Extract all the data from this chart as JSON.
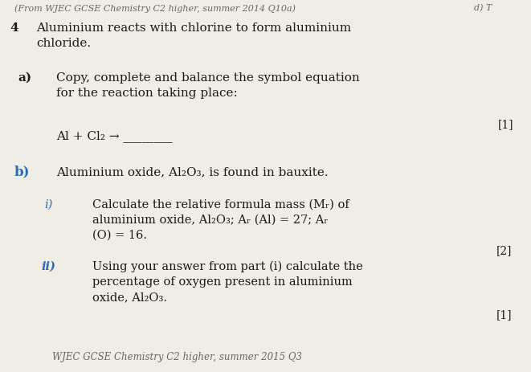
{
  "bg_color": "#f0ede6",
  "title_italic": "(From WJEC GCSE Chemistry C2 higher, summer 2014 Q10a)",
  "title_right": "d) T",
  "q_number": "4",
  "q_intro": "Aluminium reacts with chlorine to form aluminium\nchloride.",
  "a_label": "a)",
  "a_text": "Copy, complete and balance the symbol equation\nfor the reaction taking place:",
  "a_mark": "[1]",
  "equation": "Al + Cl₂ → ________",
  "b_label": "b)",
  "b_text": "Aluminium oxide, Al₂O₃, is found in bauxite.",
  "i_label": "i)",
  "i_text": "Calculate the relative formula mass (Mᵣ) of\naluminium oxide, Al₂O₃; Aᵣ (Al) = 27; Aᵣ\n(O) = 16.",
  "i_mark": "[2]",
  "ii_label": "ii)",
  "ii_text": "Using your answer from part (i) calculate the\npercentage of oxygen present in aluminium\noxide, Al₂O₃.",
  "ii_mark": "[1]",
  "footer": "WJEC GCSE Chemistry C2 higher, summer 2015 Q3",
  "text_color": "#1a1a1a",
  "blue_color": "#2b6cb0",
  "header_color": "#666666",
  "mark_color": "#1a1a1a"
}
